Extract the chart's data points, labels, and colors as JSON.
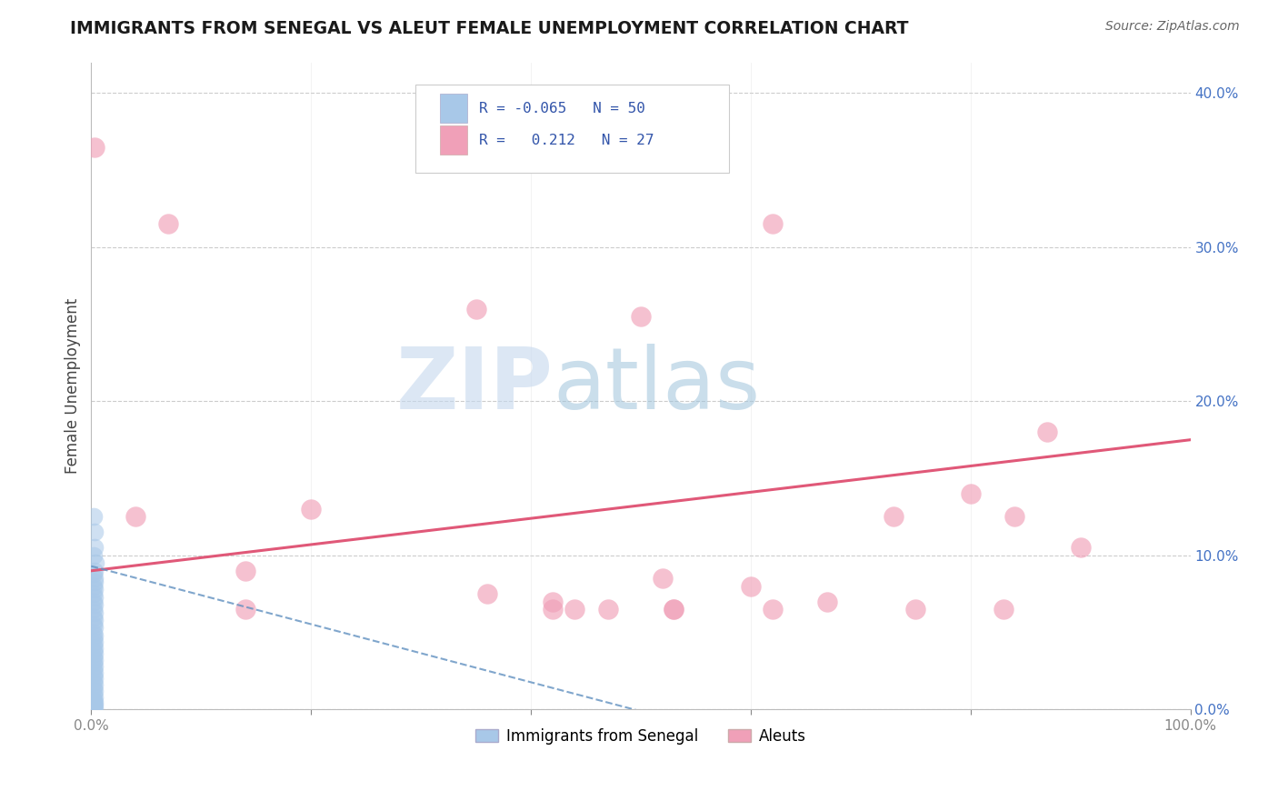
{
  "title": "IMMIGRANTS FROM SENEGAL VS ALEUT FEMALE UNEMPLOYMENT CORRELATION CHART",
  "source": "Source: ZipAtlas.com",
  "ylabel": "Female Unemployment",
  "xlim": [
    0.0,
    1.0
  ],
  "ylim": [
    0.0,
    0.42
  ],
  "xticks": [
    0.0,
    0.2,
    0.4,
    0.6,
    0.8,
    1.0
  ],
  "xticklabels": [
    "0.0%",
    "",
    "",
    "",
    "",
    "100.0%"
  ],
  "yticks": [
    0.0,
    0.1,
    0.2,
    0.3,
    0.4
  ],
  "yticklabels": [
    "0.0%",
    "10.0%",
    "20.0%",
    "30.0%",
    "40.0%"
  ],
  "color_blue": "#a8c8e8",
  "color_pink": "#f0a0b8",
  "line_blue_color": "#6090c0",
  "line_pink_color": "#e05878",
  "watermark_color": "#c8dff0",
  "blue_scatter_x": [
    0.002,
    0.003,
    0.003,
    0.002,
    0.004,
    0.003,
    0.002,
    0.003,
    0.003,
    0.002,
    0.003,
    0.002,
    0.003,
    0.002,
    0.003,
    0.002,
    0.003,
    0.002,
    0.003,
    0.002,
    0.003,
    0.002,
    0.003,
    0.002,
    0.003,
    0.002,
    0.003,
    0.002,
    0.003,
    0.002,
    0.003,
    0.002,
    0.003,
    0.002,
    0.003,
    0.002,
    0.003,
    0.002,
    0.003,
    0.002,
    0.003,
    0.002,
    0.003,
    0.002,
    0.003,
    0.002,
    0.003,
    0.002,
    0.003,
    0.002
  ],
  "blue_scatter_y": [
    0.125,
    0.115,
    0.105,
    0.1,
    0.095,
    0.09,
    0.088,
    0.085,
    0.083,
    0.08,
    0.078,
    0.075,
    0.073,
    0.07,
    0.068,
    0.065,
    0.063,
    0.06,
    0.058,
    0.055,
    0.053,
    0.05,
    0.048,
    0.046,
    0.044,
    0.042,
    0.04,
    0.038,
    0.036,
    0.034,
    0.032,
    0.03,
    0.028,
    0.026,
    0.024,
    0.022,
    0.02,
    0.018,
    0.016,
    0.014,
    0.012,
    0.01,
    0.008,
    0.006,
    0.005,
    0.004,
    0.003,
    0.002,
    0.001,
    0.001
  ],
  "pink_scatter_x": [
    0.003,
    0.04,
    0.14,
    0.2,
    0.36,
    0.42,
    0.47,
    0.52,
    0.6,
    0.67,
    0.73,
    0.84,
    0.9,
    0.07,
    0.35,
    0.5,
    0.62,
    0.8,
    0.87,
    0.44,
    0.53,
    0.75,
    0.83,
    0.14,
    0.42,
    0.53,
    0.62
  ],
  "pink_scatter_y": [
    0.365,
    0.125,
    0.09,
    0.13,
    0.075,
    0.07,
    0.065,
    0.085,
    0.08,
    0.07,
    0.125,
    0.125,
    0.105,
    0.315,
    0.26,
    0.255,
    0.315,
    0.14,
    0.18,
    0.065,
    0.065,
    0.065,
    0.065,
    0.065,
    0.065,
    0.065,
    0.065
  ]
}
